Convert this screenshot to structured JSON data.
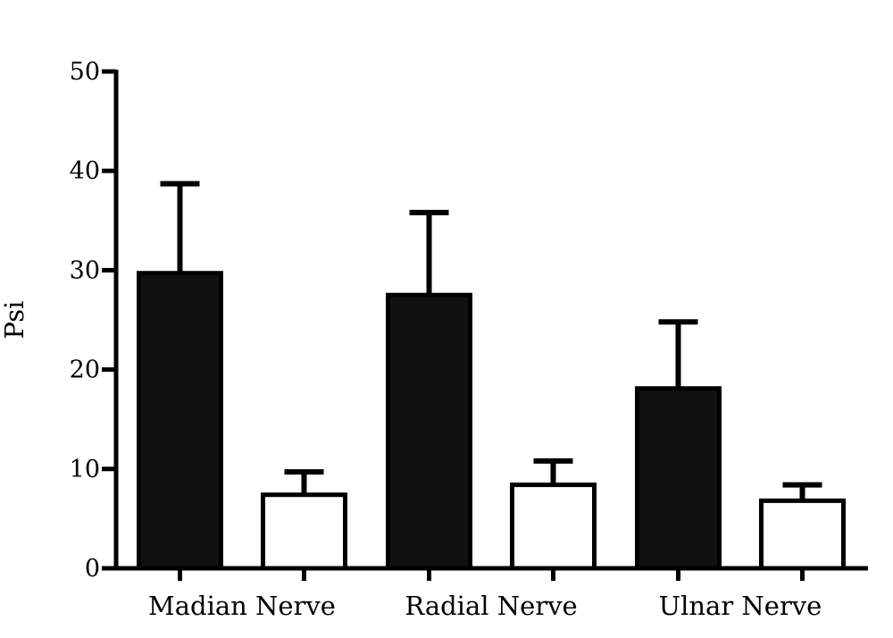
{
  "chart_data": {
    "type": "bar",
    "title": "",
    "ylabel": "Psi",
    "xlabel": "",
    "ylim": [
      0,
      50
    ],
    "yticks": [
      0,
      10,
      20,
      30,
      40,
      50
    ],
    "categories": [
      "Madian Nerve",
      "Radial Nerve",
      "Ulnar Nerve"
    ],
    "series": [
      {
        "values": [
          29.7,
          27.5,
          18.1
        ],
        "errors": [
          9.0,
          8.3,
          6.7
        ],
        "fill": "#111111"
      },
      {
        "values": [
          7.4,
          8.4,
          6.8
        ],
        "errors": [
          2.3,
          2.4,
          1.6
        ],
        "fill": "#ffffff"
      }
    ],
    "grid": false,
    "legend": "none"
  }
}
